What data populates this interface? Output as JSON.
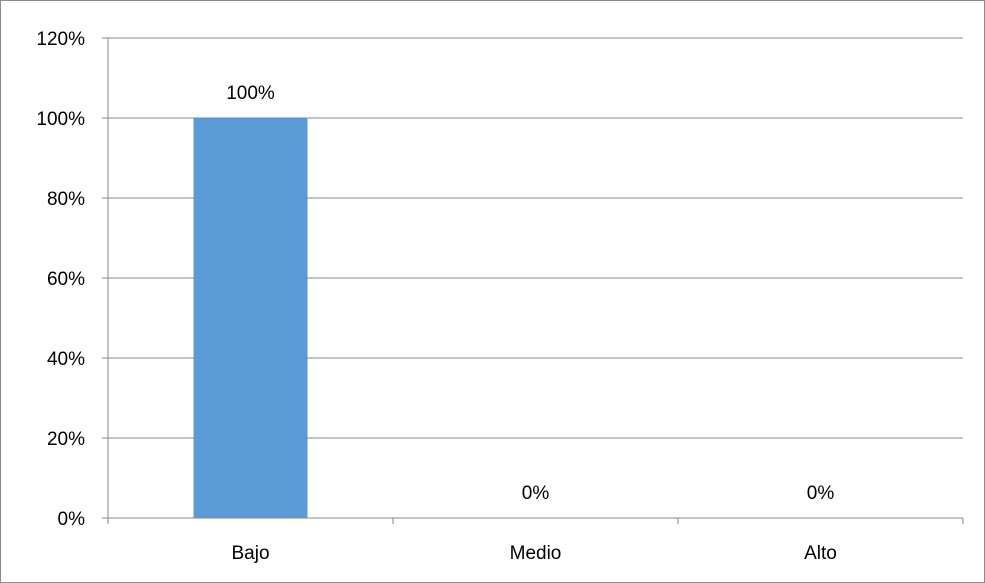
{
  "chart_data": {
    "type": "bar",
    "categories": [
      "Bajo",
      "Medio",
      "Alto"
    ],
    "values": [
      100,
      0,
      0
    ],
    "data_labels": [
      "100%",
      "0%",
      "0%"
    ],
    "y_ticks": [
      "0%",
      "20%",
      "40%",
      "60%",
      "80%",
      "100%",
      "120%"
    ],
    "ylim": [
      0,
      120
    ],
    "y_unit": "%",
    "grid": true,
    "legend": "none",
    "bar_color": "#5b9bd5",
    "gridline_color": "#868686"
  }
}
